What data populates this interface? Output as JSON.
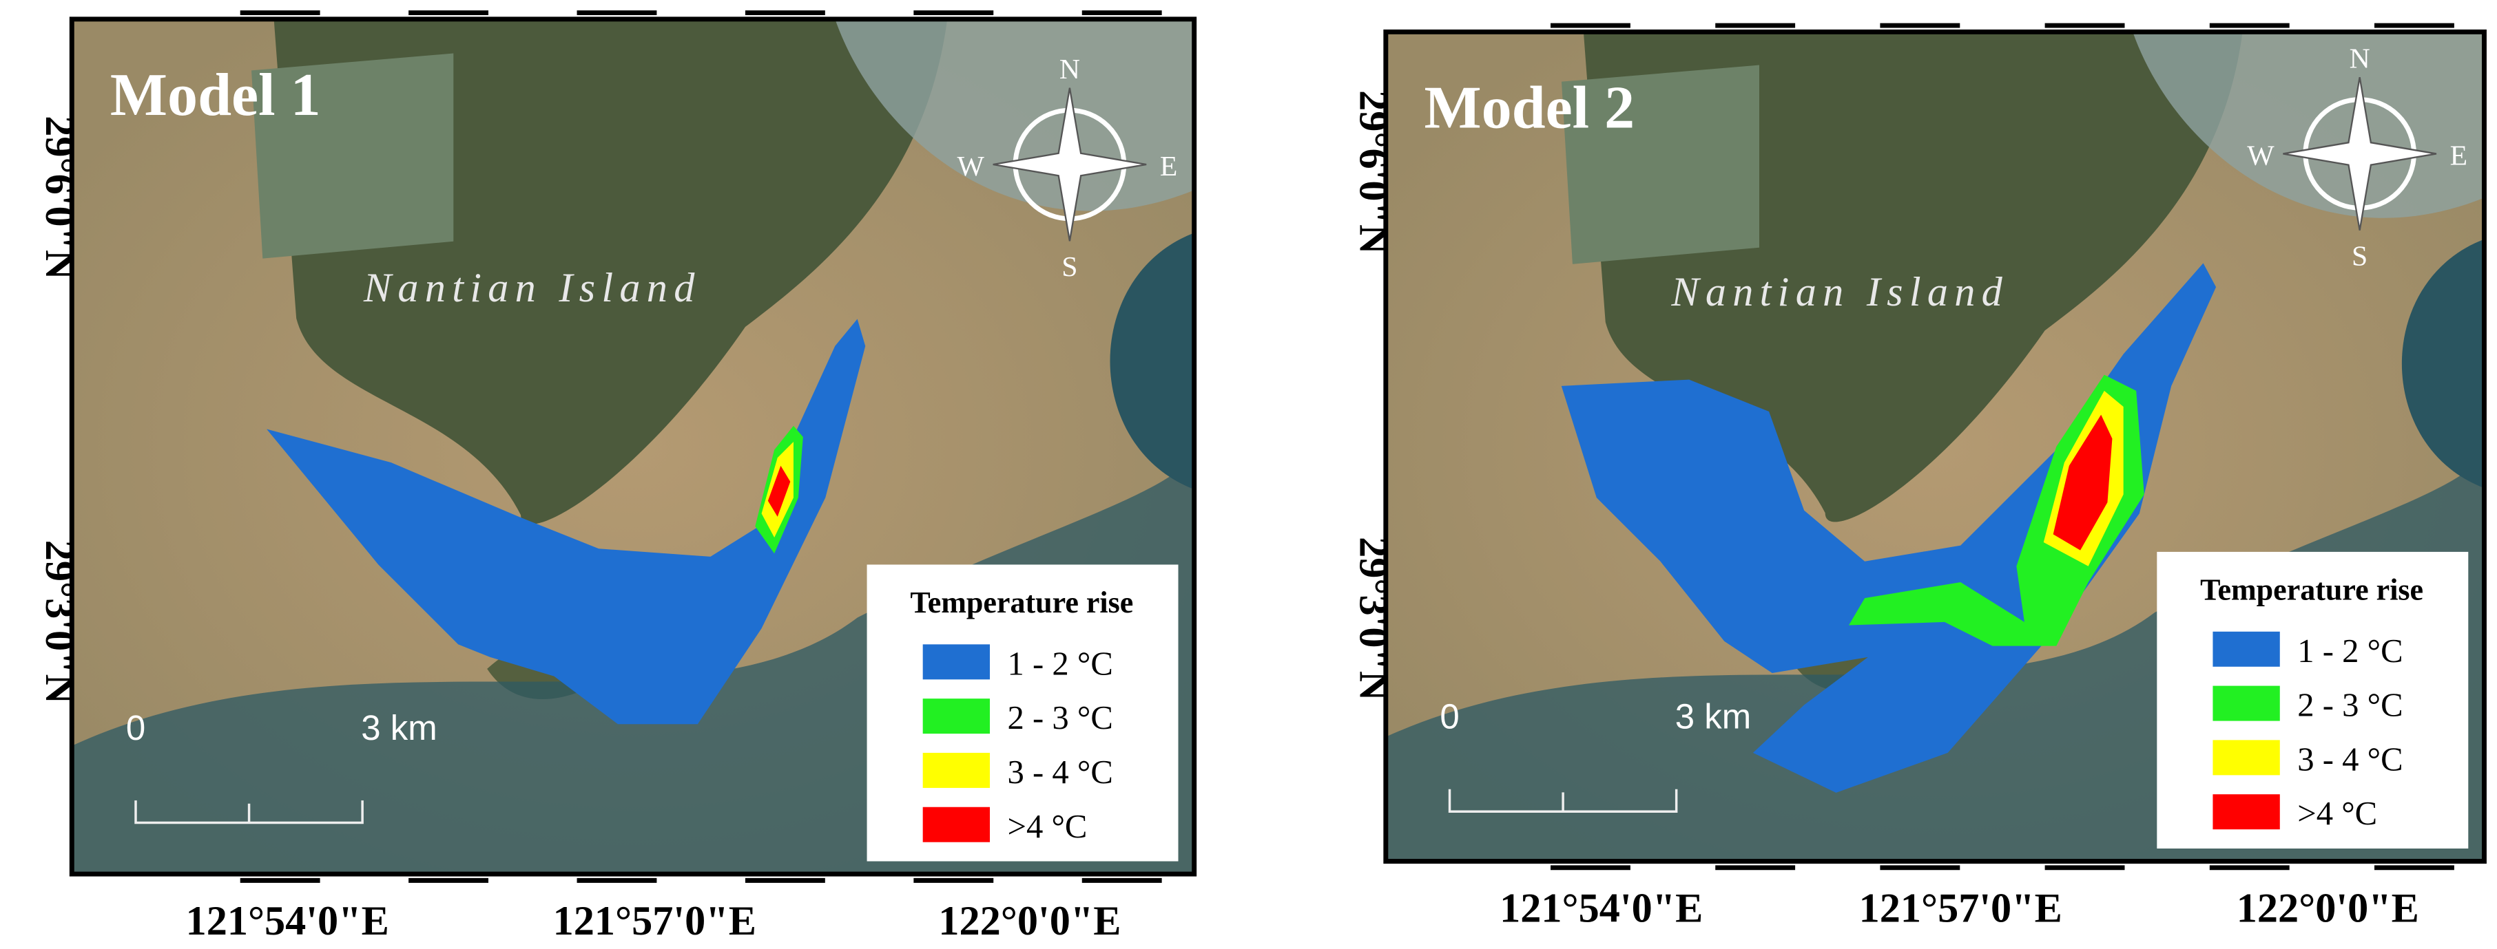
{
  "panels": [
    {
      "title": "Model 1",
      "island_label": "Nantian Island",
      "compass": {
        "north": "N",
        "east": "E",
        "south": "S",
        "west": "W"
      },
      "lat_labels": [
        "29°6'0\"N",
        "29°3'0\"N"
      ],
      "lon_labels": [
        "121°54'0\"E",
        "121°57'0\"E",
        "122°0'0\"E"
      ],
      "scale_bar": {
        "start": "0",
        "end": "3 km"
      },
      "legend": {
        "title": "Temperature rise",
        "items": [
          {
            "label": "1 - 2 °C",
            "color": "#1f6fd1"
          },
          {
            "label": "2 - 3 °C",
            "color": "#22f022"
          },
          {
            "label": "3 - 4 °C",
            "color": "#ffff00"
          },
          {
            "label": ">4 °C",
            "color": "#ff0000"
          }
        ]
      }
    },
    {
      "title": "Model 2",
      "island_label": "Nantian Island",
      "compass": {
        "north": "N",
        "east": "E",
        "south": "S",
        "west": "W"
      },
      "lat_labels": [
        "29°6'0\"N",
        "29°3'0\"N"
      ],
      "lon_labels": [
        "121°54'0\"E",
        "121°57'0\"E",
        "122°0'0\"E"
      ],
      "scale_bar": {
        "start": "0",
        "end": "3 km"
      },
      "legend": {
        "title": "Temperature rise",
        "items": [
          {
            "label": "1 - 2 °C",
            "color": "#1f6fd1"
          },
          {
            "label": "2 - 3 °C",
            "color": "#22f022"
          },
          {
            "label": "3 - 4 °C",
            "color": "#ffff00"
          },
          {
            "label": ">4 °C",
            "color": "#ff0000"
          }
        ]
      }
    }
  ]
}
